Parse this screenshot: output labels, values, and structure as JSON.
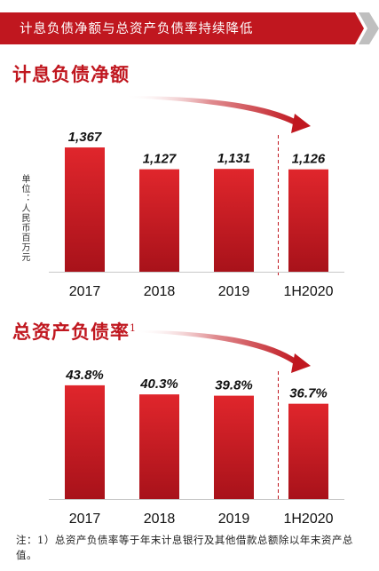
{
  "banner": {
    "title": "计息负债净额与总资产负债率持续降低"
  },
  "colors": {
    "accent": "#c0171f",
    "bar_top": "#e0262c",
    "bar_bottom": "#a8121a"
  },
  "chart_data": [
    {
      "type": "bar",
      "title": "计息负债净额",
      "ylabel": "单位：人民币百万元",
      "categories": [
        "2017",
        "2018",
        "2019",
        "1H2020"
      ],
      "values": [
        1367,
        1127,
        1131,
        1126
      ],
      "value_labels": [
        "1,367",
        "1,127",
        "1,131",
        "1,126"
      ],
      "ylim": [
        0,
        1500
      ],
      "grid": false,
      "legend": "none"
    },
    {
      "type": "bar",
      "title": "总资产负债率",
      "title_sup": "1",
      "categories": [
        "2017",
        "2018",
        "2019",
        "1H2020"
      ],
      "values": [
        43.8,
        40.3,
        39.8,
        36.7
      ],
      "value_labels": [
        "43.8%",
        "40.3%",
        "39.8%",
        "36.7%"
      ],
      "ylim": [
        0,
        48
      ],
      "grid": false,
      "legend": "none"
    }
  ],
  "footnote": "注：1）总资产负债率等于年末计息银行及其他借款总额除以年末资产总值。"
}
